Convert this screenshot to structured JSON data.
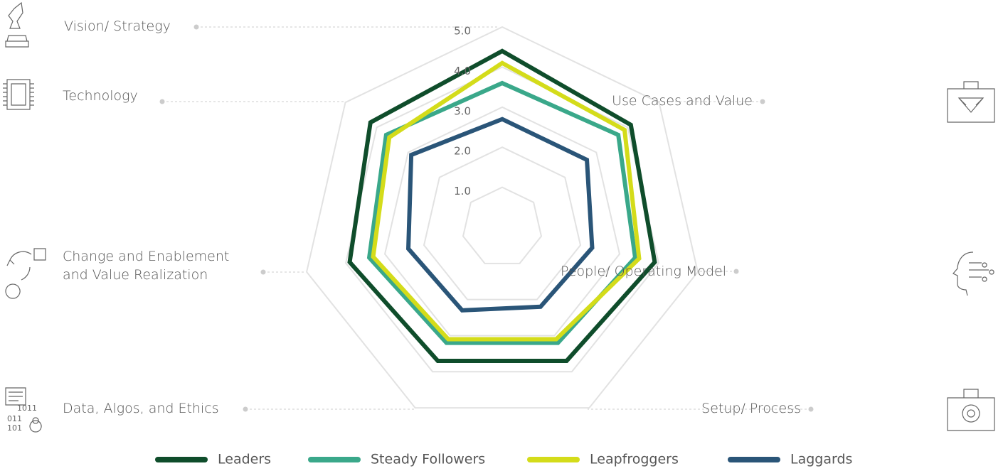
{
  "chart_data": {
    "type": "radar",
    "categories": [
      "Vision/ Strategy",
      "Use Cases and Value",
      "People/ Operating Model",
      "Setup/ Process",
      "Data, Algos, and Ethics",
      "Change and Enablement and Value Realization",
      "Technology"
    ],
    "rlim": [
      0,
      5
    ],
    "rticks": [
      {
        "value": 1,
        "label": "1.0"
      },
      {
        "value": 2,
        "label": "2.0"
      },
      {
        "value": 3,
        "label": "3.0"
      },
      {
        "value": 4,
        "label": "4.0"
      },
      {
        "value": 5,
        "label": "5.0"
      }
    ],
    "series": [
      {
        "name": "Leaders",
        "color": "#0f4d2b",
        "values": [
          4.4,
          4.1,
          3.9,
          3.7,
          3.7,
          3.9,
          4.2
        ]
      },
      {
        "name": "Steady Followers",
        "color": "#3aa88a",
        "values": [
          3.6,
          3.7,
          3.4,
          3.2,
          3.2,
          3.4,
          3.7
        ]
      },
      {
        "name": "Leapfroggers",
        "color": "#d4dc1a",
        "values": [
          4.1,
          3.9,
          3.5,
          3.1,
          3.1,
          3.3,
          3.6
        ]
      },
      {
        "name": "Laggards",
        "color": "#2a5578",
        "values": [
          2.7,
          2.7,
          2.3,
          2.2,
          2.3,
          2.4,
          2.9
        ]
      }
    ]
  }
}
